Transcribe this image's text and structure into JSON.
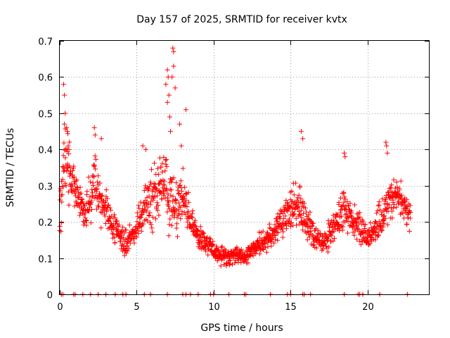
{
  "chart_data": {
    "type": "scatter",
    "title": "Day 157 of 2025, SRMTID for receiver kvtx",
    "xlabel": "GPS time / hours",
    "ylabel": "SRMTID / TECUs",
    "xlim": [
      0,
      24
    ],
    "ylim": [
      0,
      0.7
    ],
    "xticks": [
      0,
      5,
      10,
      15,
      20
    ],
    "xtick_labels": [
      "0",
      "5",
      "10",
      "15",
      "20"
    ],
    "yticks": [
      0,
      0.1,
      0.2,
      0.3,
      0.4,
      0.5,
      0.6,
      0.7
    ],
    "ytick_labels": [
      "0",
      "0.1",
      "0.2",
      "0.3",
      "0.4",
      "0.5",
      "0.6",
      "0.7"
    ],
    "grid": true,
    "marker": "+",
    "color": "#ff0000",
    "series": [
      {
        "name": "SRMTID",
        "profile_x": [
          0.0,
          0.1,
          0.2,
          0.4,
          0.6,
          0.8,
          1.0,
          1.3,
          1.6,
          2.0,
          2.3,
          2.6,
          3.0,
          3.4,
          3.8,
          4.2,
          4.6,
          5.0,
          5.4,
          5.8,
          6.2,
          6.6,
          7.0,
          7.3,
          7.6,
          8.0,
          8.4,
          8.8,
          9.2,
          9.6,
          10.0,
          10.4,
          10.8,
          11.2,
          11.6,
          12.0,
          12.4,
          12.8,
          13.2,
          13.6,
          14.0,
          14.4,
          14.8,
          15.2,
          15.6,
          16.0,
          16.4,
          16.8,
          17.2,
          17.6,
          18.0,
          18.4,
          18.8,
          19.2,
          19.6,
          20.0,
          20.4,
          20.8,
          21.2,
          21.6,
          22.0,
          22.4,
          22.8
        ],
        "profile_y": [
          0.22,
          0.28,
          0.33,
          0.37,
          0.35,
          0.31,
          0.3,
          0.26,
          0.22,
          0.27,
          0.32,
          0.27,
          0.24,
          0.2,
          0.17,
          0.14,
          0.15,
          0.18,
          0.23,
          0.26,
          0.28,
          0.3,
          0.27,
          0.26,
          0.23,
          0.28,
          0.22,
          0.18,
          0.15,
          0.14,
          0.12,
          0.11,
          0.1,
          0.1,
          0.11,
          0.1,
          0.12,
          0.13,
          0.14,
          0.15,
          0.18,
          0.2,
          0.22,
          0.23,
          0.25,
          0.2,
          0.17,
          0.15,
          0.14,
          0.17,
          0.2,
          0.24,
          0.22,
          0.2,
          0.18,
          0.15,
          0.18,
          0.2,
          0.24,
          0.26,
          0.27,
          0.24,
          0.22
        ],
        "spread_y": [
          0.1,
          0.12,
          0.12,
          0.1,
          0.09,
          0.08,
          0.07,
          0.06,
          0.06,
          0.08,
          0.09,
          0.08,
          0.07,
          0.06,
          0.05,
          0.04,
          0.04,
          0.05,
          0.07,
          0.09,
          0.1,
          0.12,
          0.12,
          0.1,
          0.08,
          0.08,
          0.06,
          0.05,
          0.04,
          0.04,
          0.03,
          0.03,
          0.03,
          0.03,
          0.03,
          0.03,
          0.03,
          0.03,
          0.04,
          0.05,
          0.05,
          0.06,
          0.07,
          0.08,
          0.08,
          0.06,
          0.05,
          0.04,
          0.04,
          0.05,
          0.06,
          0.07,
          0.06,
          0.05,
          0.05,
          0.04,
          0.05,
          0.06,
          0.07,
          0.07,
          0.06,
          0.05,
          0.05
        ],
        "n_points": 1500,
        "spikes": [
          {
            "x": 0.25,
            "y": 0.58
          },
          {
            "x": 0.3,
            "y": 0.55
          },
          {
            "x": 0.35,
            "y": 0.5
          },
          {
            "x": 0.3,
            "y": 0.47
          },
          {
            "x": 0.45,
            "y": 0.46
          },
          {
            "x": 0.5,
            "y": 0.45
          },
          {
            "x": 0.55,
            "y": 0.41
          },
          {
            "x": 0.6,
            "y": 0.4
          },
          {
            "x": 2.25,
            "y": 0.46
          },
          {
            "x": 2.3,
            "y": 0.44
          },
          {
            "x": 2.7,
            "y": 0.43
          },
          {
            "x": 5.4,
            "y": 0.41
          },
          {
            "x": 5.6,
            "y": 0.4
          },
          {
            "x": 6.9,
            "y": 0.58
          },
          {
            "x": 7.0,
            "y": 0.62
          },
          {
            "x": 7.05,
            "y": 0.6
          },
          {
            "x": 7.35,
            "y": 0.68
          },
          {
            "x": 7.4,
            "y": 0.67
          },
          {
            "x": 7.4,
            "y": 0.63
          },
          {
            "x": 7.3,
            "y": 0.6
          },
          {
            "x": 7.5,
            "y": 0.57
          },
          {
            "x": 7.1,
            "y": 0.55
          },
          {
            "x": 7.0,
            "y": 0.53
          },
          {
            "x": 7.15,
            "y": 0.49
          },
          {
            "x": 7.2,
            "y": 0.45
          },
          {
            "x": 7.8,
            "y": 0.47
          },
          {
            "x": 8.2,
            "y": 0.51
          },
          {
            "x": 7.9,
            "y": 0.41
          },
          {
            "x": 15.7,
            "y": 0.45
          },
          {
            "x": 15.8,
            "y": 0.43
          },
          {
            "x": 18.5,
            "y": 0.39
          },
          {
            "x": 18.55,
            "y": 0.38
          },
          {
            "x": 21.2,
            "y": 0.42
          },
          {
            "x": 21.25,
            "y": 0.41
          },
          {
            "x": 21.3,
            "y": 0.39
          }
        ],
        "zero_x": [
          0.1,
          0.2,
          0.9,
          1.0,
          1.5,
          2.0,
          2.5,
          3.0,
          3.6,
          4.1,
          4.3,
          5.5,
          5.9,
          7.0,
          8.0,
          8.2,
          8.5,
          9.0,
          9.8,
          10.0,
          11.0,
          12.0,
          12.1,
          13.7,
          14.8,
          15.0,
          15.8,
          15.9,
          16.3,
          18.5,
          19.4,
          19.5,
          19.7,
          20.8,
          22.6
        ]
      }
    ]
  }
}
